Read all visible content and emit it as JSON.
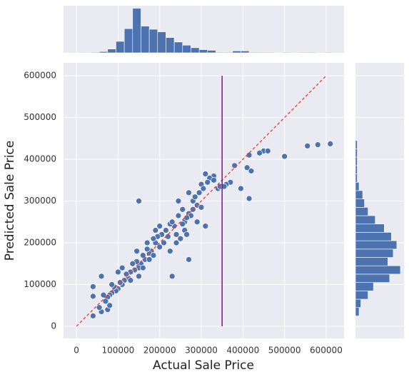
{
  "chart_data": [
    {
      "type": "scatter",
      "x_label": "Actual Sale Price",
      "y_label": "Predicted Sale Price",
      "color": "#4c72b0",
      "xlim": [
        -31000,
        643000
      ],
      "ylim": [
        -29000,
        631000
      ],
      "xticks": [
        0,
        100000,
        200000,
        300000,
        400000,
        500000,
        600000
      ],
      "yticks": [
        0,
        100000,
        200000,
        300000,
        400000,
        500000,
        600000
      ],
      "grid": true,
      "x": [
        150000,
        230000,
        555000,
        580000,
        610000,
        500000,
        450000,
        460000,
        440000,
        415000,
        410000,
        420000,
        415000,
        395000,
        380000,
        370000,
        360000,
        340000,
        330000,
        320000,
        310000,
        300000,
        290000,
        280000,
        270000,
        260000,
        245000,
        250000,
        240000,
        260000,
        270000,
        280000,
        300000,
        310000,
        290000,
        275000,
        265000,
        255000,
        235000,
        225000,
        215000,
        205000,
        195000,
        200000,
        190000,
        185000,
        180000,
        175000,
        170000,
        165000,
        160000,
        155000,
        150000,
        145000,
        140000,
        135000,
        130000,
        125000,
        120000,
        115000,
        110000,
        105000,
        100000,
        95000,
        90000,
        85000,
        80000,
        75000,
        70000,
        65000,
        60000,
        55000,
        40000,
        40000,
        40000,
        60000,
        75000,
        80000,
        85000,
        100000,
        110000,
        130000,
        145000,
        150000,
        160000,
        170000,
        175000,
        185000,
        190000,
        200000,
        210000,
        220000,
        225000,
        230000,
        240000,
        245000,
        255000,
        265000,
        270000,
        285000,
        295000,
        305000,
        315000,
        330000,
        345000,
        355000
      ],
      "y": [
        300000,
        120000,
        432000,
        435000,
        437000,
        407000,
        420000,
        420000,
        415000,
        410000,
        380000,
        372000,
        306000,
        330000,
        385000,
        345000,
        340000,
        330000,
        360000,
        355000,
        365000,
        340000,
        290000,
        300000,
        320000,
        250000,
        300000,
        210000,
        220000,
        230000,
        270000,
        280000,
        285000,
        240000,
        250000,
        265000,
        260000,
        245000,
        240000,
        245000,
        230000,
        220000,
        215000,
        190000,
        200000,
        210000,
        180000,
        175000,
        185000,
        160000,
        170000,
        150000,
        140000,
        155000,
        135000,
        150000,
        130000,
        115000,
        125000,
        110000,
        100000,
        105000,
        90000,
        85000,
        95000,
        80000,
        75000,
        70000,
        60000,
        75000,
        35000,
        45000,
        25000,
        72000,
        95000,
        120000,
        40000,
        50000,
        100000,
        130000,
        140000,
        110000,
        180000,
        120000,
        140000,
        200000,
        160000,
        170000,
        230000,
        240000,
        200000,
        215000,
        180000,
        250000,
        200000,
        265000,
        280000,
        220000,
        160000,
        310000,
        320000,
        330000,
        345000,
        350000,
        335000,
        335000
      ],
      "identity_line": {
        "x": [
          0,
          600000
        ],
        "y": [
          0,
          600000
        ],
        "color": "#e8463a"
      },
      "vertical_line": {
        "x": 350000,
        "y": [
          0,
          600000
        ],
        "color": "#800080"
      }
    },
    {
      "type": "histogram",
      "orientation": "vertical",
      "color": "#4c72b0",
      "xlim": [
        -31000,
        643000
      ],
      "ylim": [
        0,
        74
      ],
      "bins": [
        35000,
        55000,
        75000,
        95000,
        115000,
        135000,
        155000,
        175000,
        195000,
        215000,
        235000,
        255000,
        275000,
        295000,
        315000,
        335000,
        355000,
        375000,
        395000,
        415000,
        435000,
        455000,
        475000,
        495000,
        515000,
        535000,
        555000,
        575000,
        595000,
        615000
      ],
      "values": [
        1,
        2,
        6,
        18,
        38,
        70,
        42,
        37,
        33,
        24,
        17,
        12,
        8,
        5,
        4,
        1,
        1,
        3,
        3,
        1,
        1,
        1,
        0,
        1,
        0,
        1,
        1,
        0,
        1
      ]
    },
    {
      "type": "histogram",
      "orientation": "horizontal",
      "color": "#4c72b0",
      "ylim": [
        -29000,
        631000
      ],
      "xlim": [
        0,
        27
      ],
      "bins": [
        25000,
        45000,
        65000,
        85000,
        105000,
        125000,
        145000,
        165000,
        185000,
        205000,
        225000,
        245000,
        265000,
        285000,
        305000,
        325000,
        345000,
        365000,
        385000,
        405000,
        425000,
        445000
      ],
      "values": [
        2,
        3,
        7,
        10,
        19,
        25,
        18,
        21,
        23,
        20,
        16,
        11,
        7,
        5,
        4,
        2,
        1,
        1,
        1,
        1,
        1
      ]
    }
  ]
}
